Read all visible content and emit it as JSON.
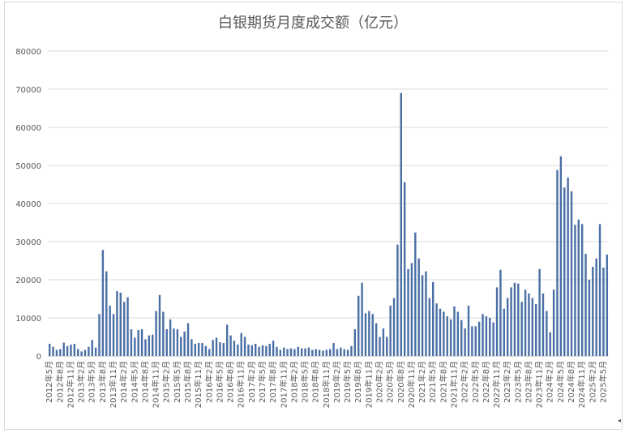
{
  "chart_data": {
    "type": "bar",
    "title": "白银期货月度成交额（亿元）",
    "xlabel": "",
    "ylabel": "",
    "ylim": [
      0,
      80000
    ],
    "yticks": [
      0,
      10000,
      20000,
      30000,
      40000,
      50000,
      60000,
      70000,
      80000
    ],
    "grid": true,
    "legend": "none",
    "bar_color": "#4a6fa5",
    "start": {
      "year": 2012,
      "month": 5
    },
    "label_every": 3,
    "categories": [
      "2012年5月",
      "2012年6月",
      "2012年7月",
      "2012年8月",
      "2012年9月",
      "2012年10月",
      "2012年11月",
      "2012年12月",
      "2013年1月",
      "2013年2月",
      "2013年3月",
      "2013年4月",
      "2013年5月",
      "2013年6月",
      "2013年7月",
      "2013年8月",
      "2013年9月",
      "2013年10月",
      "2013年11月",
      "2013年12月",
      "2014年1月",
      "2014年2月",
      "2014年3月",
      "2014年4月",
      "2014年5月",
      "2014年6月",
      "2014年7月",
      "2014年8月",
      "2014年9月",
      "2014年10月",
      "2014年11月",
      "2014年12月",
      "2015年1月",
      "2015年2月",
      "2015年3月",
      "2015年4月",
      "2015年5月",
      "2015年6月",
      "2015年7月",
      "2015年8月",
      "2015年9月",
      "2015年10月",
      "2015年11月",
      "2015年12月",
      "2016年1月",
      "2016年2月",
      "2016年3月",
      "2016年4月",
      "2016年5月",
      "2016年6月",
      "2016年7月",
      "2016年8月",
      "2016年9月",
      "2016年10月",
      "2016年11月",
      "2016年12月",
      "2017年1月",
      "2017年2月",
      "2017年3月",
      "2017年4月",
      "2017年5月",
      "2017年6月",
      "2017年7月",
      "2017年8月",
      "2017年9月",
      "2017年10月",
      "2017年11月",
      "2017年12月",
      "2018年1月",
      "2018年2月",
      "2018年3月",
      "2018年4月",
      "2018年5月",
      "2018年6月",
      "2018年7月",
      "2018年8月",
      "2018年9月",
      "2018年10月",
      "2018年11月",
      "2018年12月",
      "2019年1月",
      "2019年2月",
      "2019年3月",
      "2019年4月",
      "2019年5月",
      "2019年6月",
      "2019年7月",
      "2019年8月",
      "2019年9月",
      "2019年10月",
      "2019年11月",
      "2019年12月",
      "2020年1月",
      "2020年2月",
      "2020年3月",
      "2020年4月",
      "2020年5月",
      "2020年6月",
      "2020年7月",
      "2020年8月",
      "2020年9月",
      "2020年10月",
      "2020年11月",
      "2020年12月",
      "2021年1月",
      "2021年2月",
      "2021年3月",
      "2021年4月",
      "2021年5月",
      "2021年6月",
      "2021年7月",
      "2021年8月",
      "2021年9月",
      "2021年10月",
      "2021年11月",
      "2021年12月",
      "2022年1月",
      "2022年2月",
      "2022年3月",
      "2022年4月",
      "2022年5月",
      "2022年6月",
      "2022年7月",
      "2022年8月",
      "2022年9月",
      "2022年10月",
      "2022年11月",
      "2022年12月",
      "2023年1月",
      "2023年2月",
      "2023年3月",
      "2023年4月",
      "2023年5月",
      "2023年6月",
      "2023年7月",
      "2023年8月",
      "2023年9月",
      "2023年10月",
      "2023年11月",
      "2023年12月",
      "2024年1月",
      "2024年2月",
      "2024年3月",
      "2024年4月",
      "2024年5月",
      "2024年6月",
      "2024年7月",
      "2024年8月",
      "2024年9月",
      "2024年10月",
      "2024年11月",
      "2024年12月",
      "2025年1月",
      "2025年2月",
      "2025年3月",
      "2025年4月",
      "2025年5月",
      "2025年6月"
    ],
    "values": [
      3200,
      2400,
      1600,
      1800,
      3500,
      2600,
      3000,
      3200,
      1800,
      1200,
      1600,
      2400,
      4200,
      2200,
      11000,
      27800,
      22200,
      13200,
      11000,
      17000,
      16600,
      14200,
      15400,
      7000,
      4800,
      6800,
      7000,
      4400,
      5400,
      5600,
      11800,
      16000,
      11600,
      7000,
      9600,
      7200,
      7000,
      5000,
      6400,
      8600,
      4400,
      3200,
      3400,
      3400,
      2600,
      1800,
      4200,
      4800,
      3600,
      3400,
      8200,
      5400,
      4000,
      3000,
      6000,
      5000,
      3000,
      2800,
      3200,
      2400,
      2800,
      2600,
      3200,
      4000,
      2400,
      1600,
      2200,
      1800,
      2000,
      1800,
      2400,
      2000,
      2000,
      2200,
      1600,
      1800,
      1600,
      1400,
      1600,
      1800,
      3400,
      1800,
      2200,
      1800,
      1600,
      2600,
      7000,
      15800,
      19200,
      11200,
      11800,
      11000,
      8600,
      5000,
      7200,
      5000,
      13200,
      15200,
      29200,
      69000,
      45600,
      22800,
      24400,
      32400,
      25600,
      21200,
      22200,
      15200,
      19400,
      13800,
      12400,
      11600,
      10400,
      9600,
      13000,
      11600,
      9400,
      7200,
      13200,
      7800,
      7800,
      9000,
      11000,
      10400,
      10000,
      8800,
      18000,
      22600,
      12400,
      15200,
      18000,
      19200,
      19000,
      14200,
      17400,
      16400,
      15200,
      13600,
      22800,
      16400,
      11800,
      6200,
      17400,
      48800,
      52400,
      44200,
      46800,
      43200,
      34400,
      35800,
      34600,
      26800,
      20000,
      23400,
      25600,
      34600,
      23200,
      26600
    ]
  },
  "corner_mark": "◂"
}
